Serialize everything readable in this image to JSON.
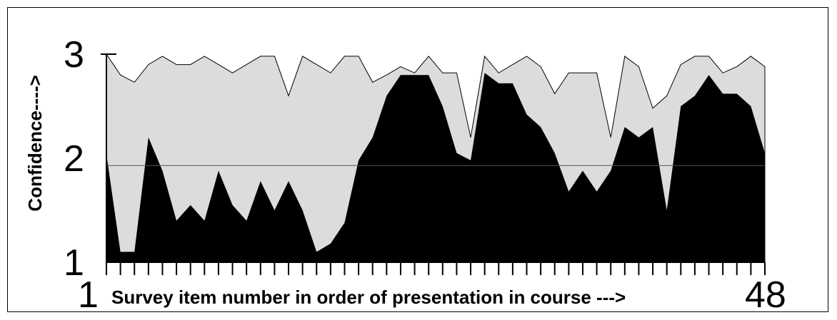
{
  "chart_data": {
    "type": "area",
    "xlabel": "Survey item number in order of presentation in course --->",
    "ylabel": "Confidence---->",
    "x_tick_labels": [
      "1",
      "48"
    ],
    "y_tick_labels": [
      "1",
      "2",
      "3"
    ],
    "xlim": [
      1,
      48
    ],
    "ylim": [
      1,
      3
    ],
    "reference_line": 1.93,
    "x": [
      1,
      2,
      3,
      4,
      5,
      6,
      7,
      8,
      9,
      10,
      11,
      12,
      13,
      14,
      15,
      16,
      17,
      18,
      19,
      20,
      21,
      22,
      23,
      24,
      25,
      26,
      27,
      28,
      29,
      30,
      31,
      32,
      33,
      34,
      35,
      36,
      37,
      38,
      39,
      40,
      41,
      42,
      43,
      44,
      45,
      46,
      47,
      48
    ],
    "series": [
      {
        "color": "#dcdcdc",
        "values": [
          3.0,
          2.8,
          2.73,
          2.9,
          2.98,
          2.9,
          2.9,
          2.98,
          2.9,
          2.82,
          2.9,
          2.98,
          2.98,
          2.6,
          2.98,
          2.9,
          2.82,
          2.98,
          2.98,
          2.73,
          2.8,
          2.88,
          2.82,
          2.98,
          2.82,
          2.82,
          2.2,
          2.98,
          2.82,
          2.9,
          2.98,
          2.88,
          2.62,
          2.82,
          2.82,
          2.82,
          2.2,
          2.98,
          2.88,
          2.48,
          2.6,
          2.9,
          2.98,
          2.98,
          2.82,
          2.88,
          2.98,
          2.88
        ]
      },
      {
        "color": "#000000",
        "values": [
          2.04,
          1.1,
          1.1,
          2.2,
          1.88,
          1.4,
          1.55,
          1.4,
          1.88,
          1.55,
          1.4,
          1.78,
          1.5,
          1.78,
          1.5,
          1.1,
          1.18,
          1.38,
          1.98,
          2.2,
          2.6,
          2.8,
          2.8,
          2.8,
          2.5,
          2.05,
          1.98,
          2.82,
          2.72,
          2.72,
          2.42,
          2.3,
          2.05,
          1.68,
          1.88,
          1.68,
          1.88,
          2.3,
          2.2,
          2.3,
          1.5,
          2.5,
          2.6,
          2.8,
          2.62,
          2.62,
          2.5,
          2.05
        ]
      }
    ]
  }
}
